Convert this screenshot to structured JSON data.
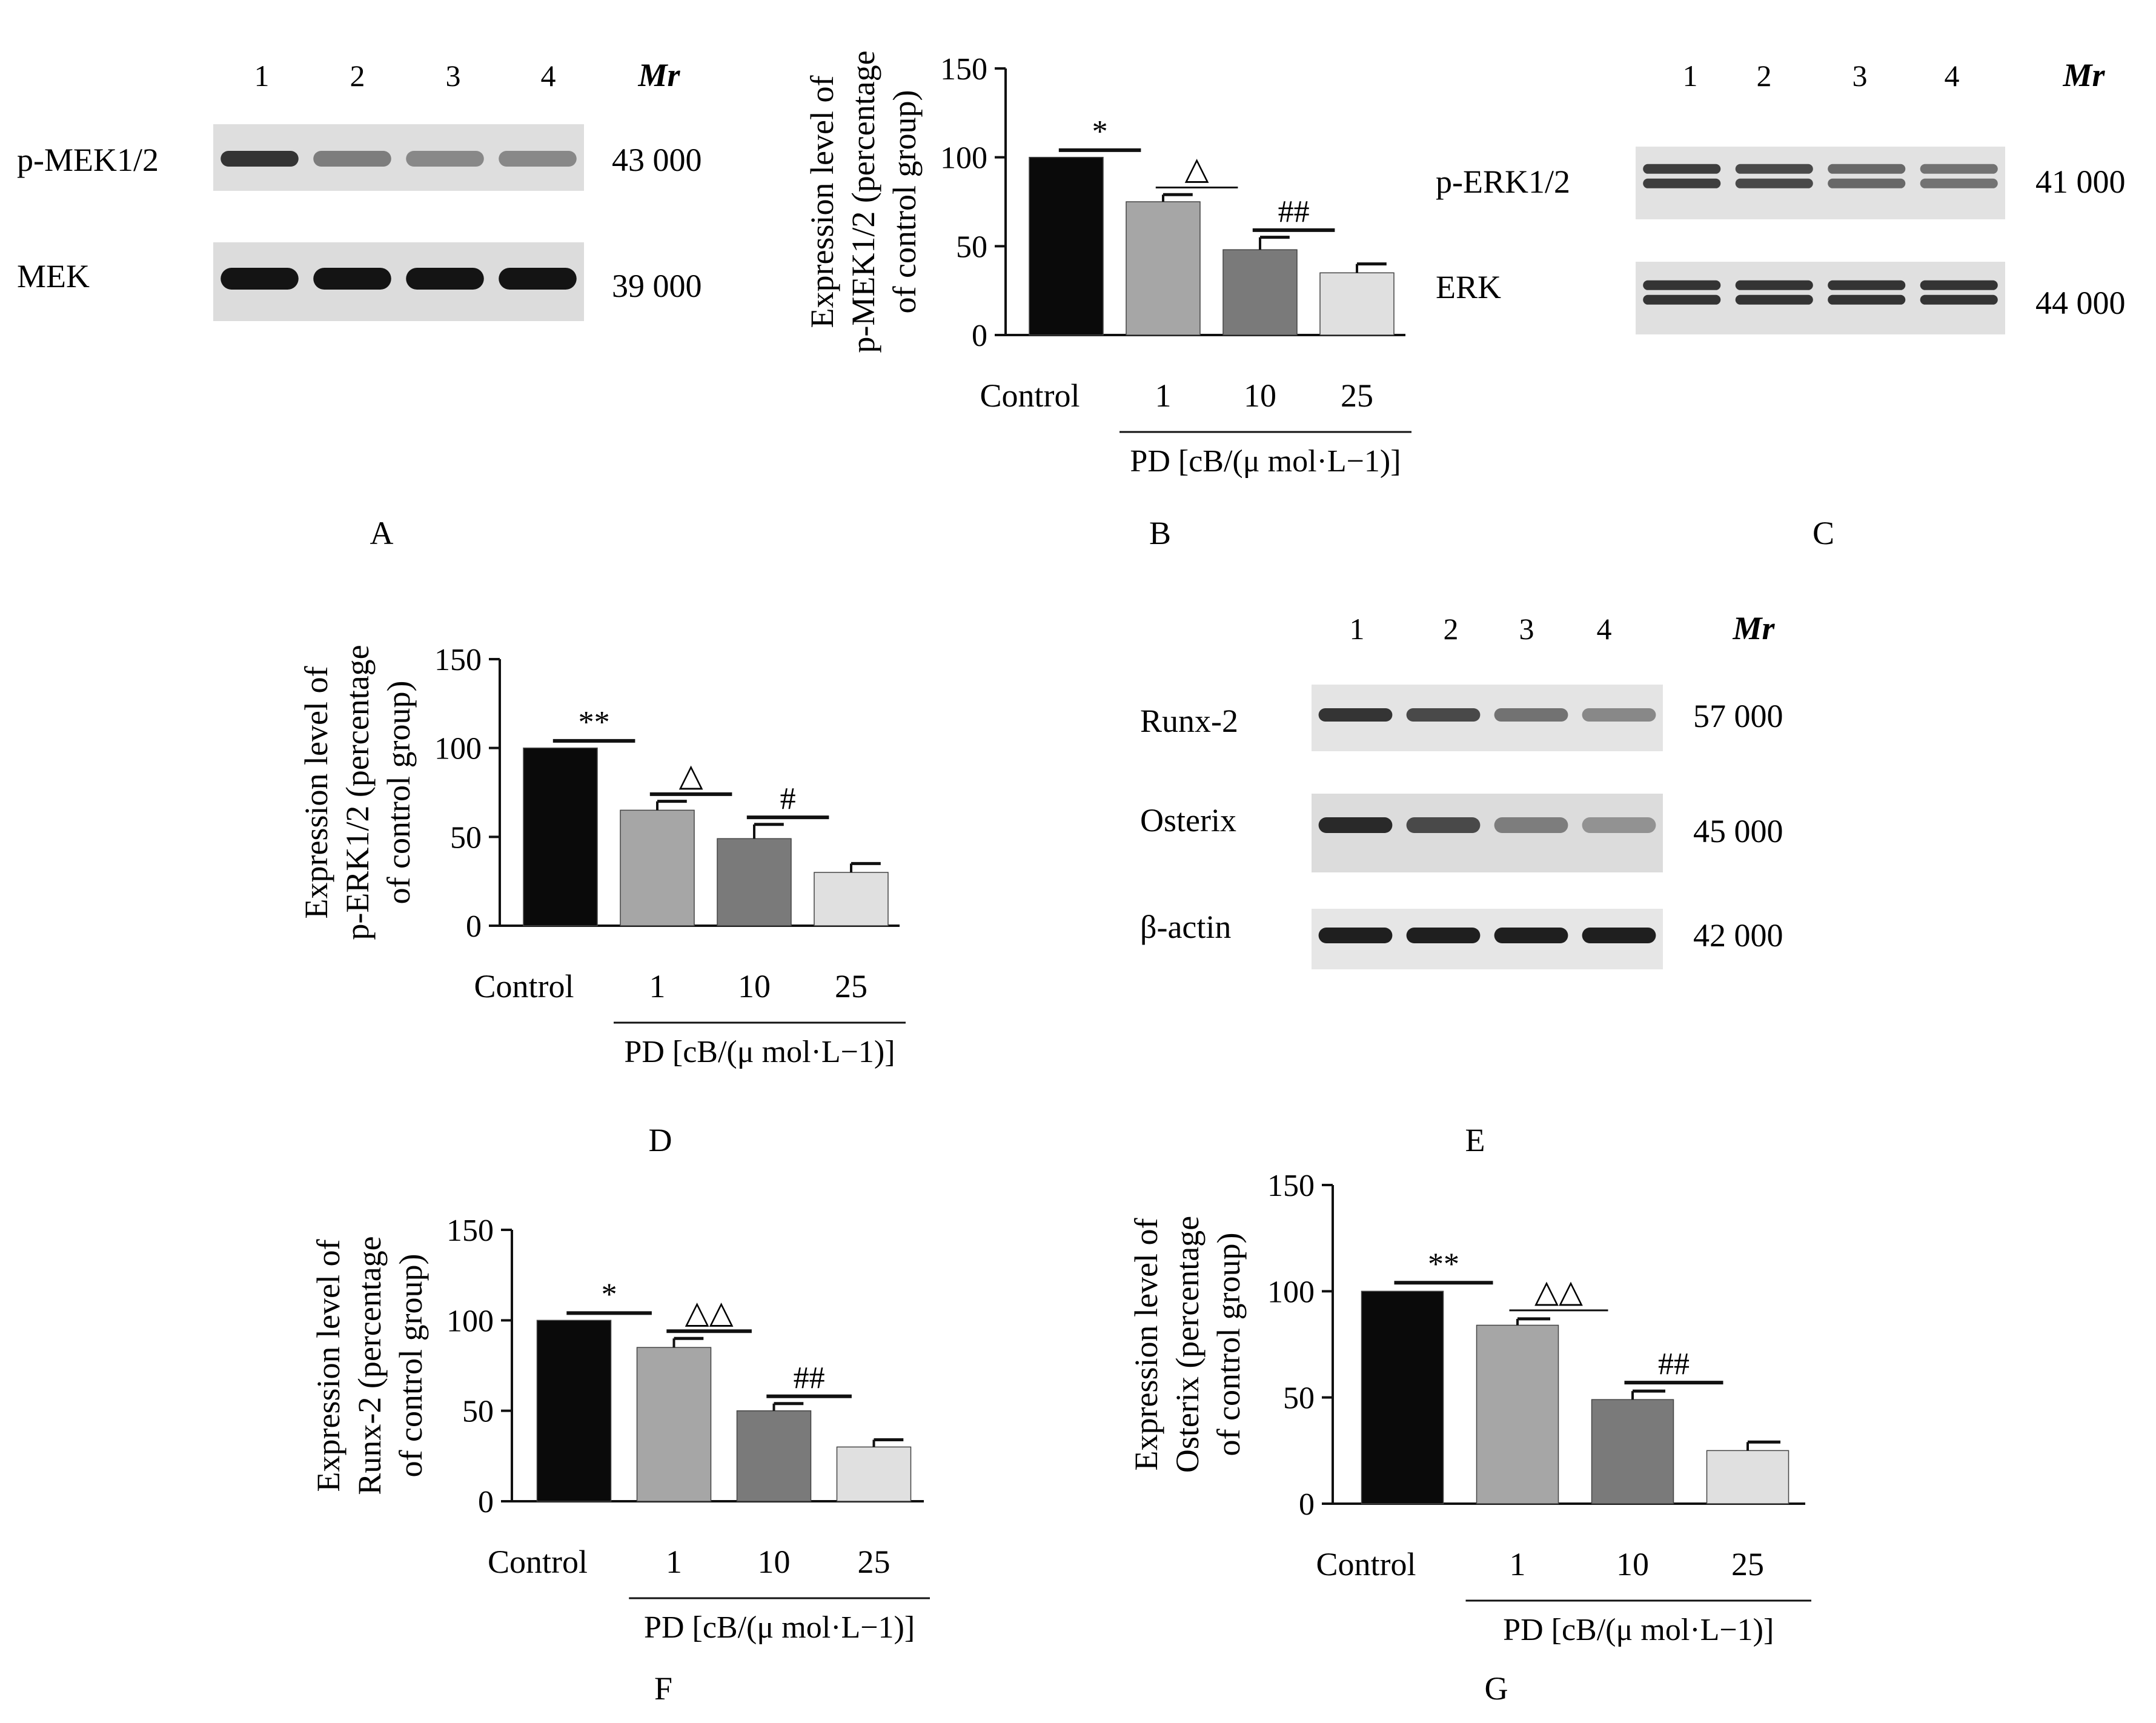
{
  "colors": {
    "control": "#0a0a0a",
    "dose_1": "#a6a6a6",
    "dose_10": "#7a7a7a",
    "dose_25": "#e0e0e0",
    "axis": "#111111",
    "blot_background": "#dcdcdc",
    "band": "#1c1c1c"
  },
  "panels": {
    "A": {
      "letter": "A",
      "lanes": [
        "1",
        "2",
        "3",
        "4"
      ],
      "mr_label": "Mr",
      "rows": [
        {
          "protein": "p-MEK1/2",
          "mr": "43  000",
          "intensity": [
            0.85,
            0.5,
            0.45,
            0.45
          ]
        },
        {
          "protein": "MEK",
          "mr": "39  000",
          "intensity": [
            1.0,
            1.0,
            1.0,
            1.0
          ]
        }
      ]
    },
    "C": {
      "letter": "C",
      "lanes": [
        "1",
        "2",
        "3",
        "4"
      ],
      "mr_label": "Mr",
      "rows": [
        {
          "protein": "p-ERK1/2",
          "mr": "41  000",
          "intensity": [
            0.8,
            0.75,
            0.6,
            0.55
          ]
        },
        {
          "protein": "ERK",
          "mr": "44  000",
          "intensity": [
            0.85,
            0.85,
            0.85,
            0.85
          ]
        }
      ]
    },
    "E": {
      "letter": "E",
      "lanes": [
        "1",
        "2",
        "3",
        "4"
      ],
      "mr_label": "Mr",
      "rows": [
        {
          "protein": "Runx-2",
          "mr": "57  000",
          "intensity": [
            0.85,
            0.75,
            0.55,
            0.45
          ]
        },
        {
          "protein": "Osterix",
          "mr": "45  000",
          "intensity": [
            0.9,
            0.75,
            0.5,
            0.4
          ]
        },
        {
          "protein": "β-actin",
          "mr": "42  000",
          "intensity": [
            0.95,
            0.95,
            0.95,
            0.95
          ]
        }
      ]
    }
  },
  "chart_data": [
    {
      "panel": "B",
      "type": "bar",
      "ylabel_lines": [
        "Expression level of",
        "p-MEK1/2 (percentage",
        "of control group)"
      ],
      "categories": [
        "Control",
        "1",
        "10",
        "25"
      ],
      "values": [
        100,
        75,
        48,
        35
      ],
      "errors": [
        0,
        4,
        7,
        5
      ],
      "ylim": [
        0,
        150
      ],
      "yticks": [
        "0",
        "50",
        "100",
        "150"
      ],
      "xgroup_label": "PD [cB/(μ mol·L−1)]",
      "significance": [
        {
          "label": "*",
          "from": 0,
          "to": 1,
          "bold": true
        },
        {
          "label": "△",
          "from": 1,
          "to": 2,
          "bold": false
        },
        {
          "label": "##",
          "from": 2,
          "to": 3,
          "bold": true
        }
      ]
    },
    {
      "panel": "D",
      "type": "bar",
      "ylabel_lines": [
        "Expression level of",
        "p-ERK1/2 (percentage",
        "of control group)"
      ],
      "categories": [
        "Control",
        "1",
        "10",
        "25"
      ],
      "values": [
        100,
        65,
        49,
        30
      ],
      "errors": [
        0,
        5,
        8,
        5
      ],
      "ylim": [
        0,
        150
      ],
      "yticks": [
        "0",
        "50",
        "100",
        "150"
      ],
      "xgroup_label": "PD [cB/(μ mol·L−1)]",
      "significance": [
        {
          "label": "**",
          "from": 0,
          "to": 1,
          "bold": true
        },
        {
          "label": "△",
          "from": 1,
          "to": 2,
          "bold": true
        },
        {
          "label": "#",
          "from": 2,
          "to": 3,
          "bold": true
        }
      ]
    },
    {
      "panel": "F",
      "type": "bar",
      "ylabel_lines": [
        "Expression level of",
        "Runx-2 (percentage",
        "of control group)"
      ],
      "categories": [
        "Control",
        "1",
        "10",
        "25"
      ],
      "values": [
        100,
        85,
        50,
        30
      ],
      "errors": [
        0,
        5,
        4,
        4
      ],
      "ylim": [
        0,
        150
      ],
      "yticks": [
        "0",
        "50",
        "100",
        "150"
      ],
      "xgroup_label": "PD [cB/(μ mol·L−1)]",
      "significance": [
        {
          "label": "*",
          "from": 0,
          "to": 1,
          "bold": true
        },
        {
          "label": "△△",
          "from": 1,
          "to": 2,
          "bold": true
        },
        {
          "label": "##",
          "from": 2,
          "to": 3,
          "bold": true
        }
      ]
    },
    {
      "panel": "G",
      "type": "bar",
      "ylabel_lines": [
        "Expression level of",
        "Osterix (percentage",
        "of control group)"
      ],
      "categories": [
        "Control",
        "1",
        "10",
        "25"
      ],
      "values": [
        100,
        84,
        49,
        25
      ],
      "errors": [
        0,
        3,
        4,
        4
      ],
      "ylim": [
        0,
        150
      ],
      "yticks": [
        "0",
        "50",
        "100",
        "150"
      ],
      "xgroup_label": "PD [cB/(μ mol·L−1)]",
      "significance": [
        {
          "label": "**",
          "from": 0,
          "to": 1,
          "bold": true
        },
        {
          "label": "△△",
          "from": 1,
          "to": 2,
          "bold": false
        },
        {
          "label": "##",
          "from": 2,
          "to": 3,
          "bold": true
        }
      ]
    }
  ]
}
